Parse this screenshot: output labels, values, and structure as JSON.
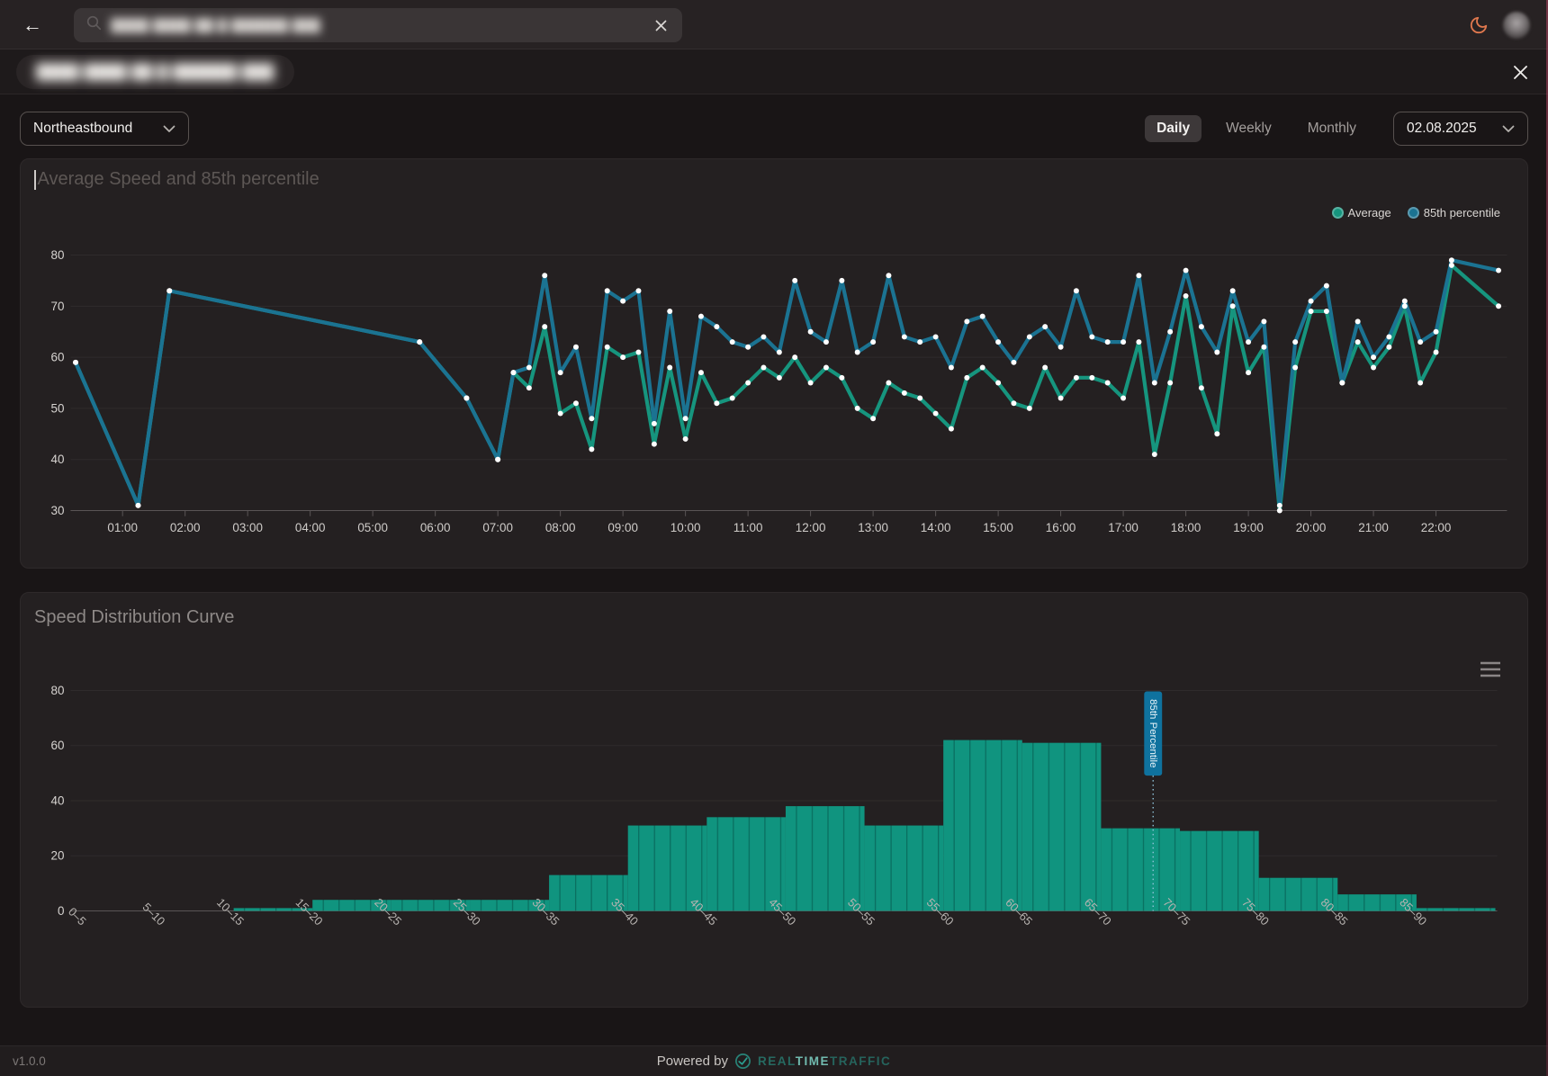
{
  "topbar": {
    "search": {
      "value_redacted": "████ ████ ██ █ ██████ ███"
    }
  },
  "titlebar": {
    "title_redacted": "████ ████ ██ █ ██████ ███"
  },
  "controls": {
    "direction_select": {
      "value": "Northeastbound"
    },
    "period_tabs": [
      {
        "label": "Daily",
        "active": true
      },
      {
        "label": "Weekly",
        "active": false
      },
      {
        "label": "Monthly",
        "active": false
      }
    ],
    "date_select": {
      "value": "02.08.2025"
    }
  },
  "chart_data": [
    {
      "type": "line",
      "title": "Average Speed and 85th percentile",
      "legend_position": "top-right",
      "grid": true,
      "ylim": [
        30,
        80
      ],
      "yticks": [
        30,
        40,
        50,
        60,
        70,
        80
      ],
      "x_tick_labels": [
        "01:00",
        "02:00",
        "03:00",
        "04:00",
        "05:00",
        "06:00",
        "07:00",
        "08:00",
        "09:00",
        "10:00",
        "11:00",
        "12:00",
        "13:00",
        "14:00",
        "15:00",
        "16:00",
        "17:00",
        "18:00",
        "19:00",
        "20:00",
        "21:00",
        "22:00"
      ],
      "x": [
        "00:15",
        "01:15",
        "01:45",
        "05:45",
        "06:30",
        "07:00",
        "07:15",
        "07:30",
        "07:45",
        "08:00",
        "08:15",
        "08:30",
        "08:45",
        "09:00",
        "09:15",
        "09:30",
        "09:45",
        "10:00",
        "10:15",
        "10:30",
        "10:45",
        "11:00",
        "11:15",
        "11:30",
        "11:45",
        "12:00",
        "12:15",
        "12:30",
        "12:45",
        "13:00",
        "13:15",
        "13:30",
        "13:45",
        "14:00",
        "14:15",
        "14:30",
        "14:45",
        "15:00",
        "15:15",
        "15:30",
        "15:45",
        "16:00",
        "16:15",
        "16:30",
        "16:45",
        "17:00",
        "17:15",
        "17:30",
        "17:45",
        "18:00",
        "18:15",
        "18:30",
        "18:45",
        "19:00",
        "19:15",
        "19:30",
        "19:45",
        "20:00",
        "20:15",
        "20:30",
        "20:45",
        "21:00",
        "21:15",
        "21:30",
        "21:45",
        "22:00",
        "22:15",
        "23:00"
      ],
      "series": [
        {
          "name": "Average",
          "color": "#16957e",
          "values": [
            59,
            31,
            73,
            63,
            52,
            40,
            57,
            54,
            66,
            49,
            51,
            42,
            62,
            60,
            61,
            43,
            58,
            44,
            57,
            51,
            52,
            55,
            58,
            56,
            60,
            55,
            58,
            56,
            50,
            48,
            55,
            53,
            52,
            49,
            46,
            56,
            58,
            55,
            51,
            50,
            58,
            52,
            56,
            56,
            55,
            52,
            63,
            41,
            55,
            72,
            54,
            45,
            70,
            57,
            62,
            30,
            58,
            69,
            69,
            55,
            63,
            58,
            62,
            70,
            55,
            61,
            78,
            70
          ]
        },
        {
          "name": "85th percentile",
          "color": "#1b7392",
          "values": [
            59,
            31,
            73,
            63,
            52,
            40,
            57,
            58,
            76,
            57,
            62,
            48,
            73,
            71,
            73,
            47,
            69,
            48,
            68,
            66,
            63,
            62,
            64,
            61,
            75,
            65,
            63,
            75,
            61,
            63,
            76,
            64,
            63,
            64,
            58,
            67,
            68,
            63,
            59,
            64,
            66,
            62,
            73,
            64,
            63,
            63,
            76,
            55,
            65,
            77,
            66,
            61,
            73,
            63,
            67,
            31,
            63,
            71,
            74,
            55,
            67,
            60,
            64,
            71,
            63,
            65,
            79,
            77
          ]
        }
      ]
    },
    {
      "type": "bar",
      "title": "Speed Distribution Curve",
      "grid": true,
      "ylim": [
        0,
        80
      ],
      "yticks": [
        0,
        20,
        40,
        60,
        80
      ],
      "bar_color": "#10947f",
      "bar_divider_color": "#0a6f60",
      "categories": [
        "0–5",
        "5–10",
        "10–15",
        "15–20",
        "20–25",
        "25–30",
        "30–35",
        "35–40",
        "40–45",
        "45–50",
        "50–55",
        "55–60",
        "60–65",
        "65–70",
        "70–75",
        "75–80",
        "80–85",
        "85–90"
      ],
      "values": [
        0,
        0,
        1,
        4,
        4,
        4,
        13,
        31,
        34,
        38,
        31,
        62,
        61,
        30,
        29,
        12,
        6,
        1
      ],
      "marker": {
        "label": "85th Percentile",
        "x_value": 68.3,
        "color": "#0f729e"
      }
    }
  ],
  "footer": {
    "version": "v1.0.0",
    "powered_by": "Powered by",
    "brand": {
      "part1": "REAL",
      "part2": "TIME",
      "part3": "TRAFFIC"
    }
  },
  "colors": {
    "average_line": "#16957e",
    "percentile_line": "#1b7392",
    "bars": "#10947f",
    "marker": "#0f729e",
    "moon_icon": "#e0784e",
    "brand_teal": "#2a9d8f"
  }
}
